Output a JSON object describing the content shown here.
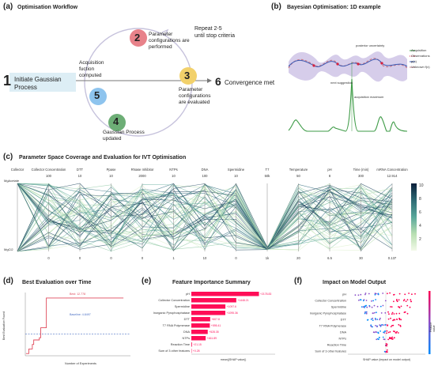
{
  "panel_a": {
    "label": "(a)",
    "title": "Optimisation Workflow",
    "repeat_text": "Repeat 2-5\nuntil stop criteria",
    "steps": [
      {
        "num": "1",
        "text": "Initiate Gaussian\nProcess"
      },
      {
        "num": "2",
        "text": "Parameter\nconfigurations are\nperformed"
      },
      {
        "num": "3",
        "text": "Parameter\nconfigurations\nare evaluated"
      },
      {
        "num": "4",
        "text": "Gaussian Process\nupdated"
      },
      {
        "num": "5",
        "text": "Acquisition\nfuction\ncomputed"
      },
      {
        "num": "6",
        "text": "Convergence met"
      }
    ],
    "colors": {
      "step2": "#e8828a",
      "step3": "#f2d16b",
      "step4": "#6dae76",
      "step5": "#8ec4ee",
      "step1_bg": "#ddeef5"
    }
  },
  "panel_b": {
    "label": "(b)",
    "title": "Bayesian Optimisation: 1D example",
    "legend": [
      "Acquisition",
      "Observations",
      "μ(x)",
      "Unknown f(x)"
    ],
    "annotations": [
      "posterior uncertainty",
      "next suggestion",
      "acquisition maximum"
    ]
  },
  "panel_c": {
    "label": "(c)",
    "title": "Parameter Space Coverage and Evaluation for IVT Optimisation",
    "axes": [
      {
        "name": "Collector",
        "top": "",
        "bottom": ""
      },
      {
        "name": "Collector Concentration",
        "top": "100",
        "bottom": "0"
      },
      {
        "name": "DTT",
        "top": "10",
        "bottom": "0"
      },
      {
        "name": "Ppase",
        "top": "10",
        "bottom": "0"
      },
      {
        "name": "RNase Inhibitor",
        "top": "2000",
        "bottom": "0"
      },
      {
        "name": "NTPs",
        "top": "10",
        "bottom": "1"
      },
      {
        "name": "DNA",
        "top": "100",
        "bottom": "10"
      },
      {
        "name": "Spermidine",
        "top": "10",
        "bottom": "0"
      },
      {
        "name": "T7",
        "top": "50k",
        "bottom": "1k"
      },
      {
        "name": "Temperature",
        "top": "50",
        "bottom": "20"
      },
      {
        "name": "pH",
        "top": "8",
        "bottom": "6.5"
      },
      {
        "name": "Time (min)",
        "top": "300",
        "bottom": "30"
      },
      {
        "name": "mRNA Concentration",
        "top": "12.914",
        "bottom": "0.137"
      }
    ],
    "first_axis_labels": [
      "MgAcetate",
      "MgCl2"
    ],
    "colorbar_ticks": [
      "10",
      "8",
      "6",
      "4",
      "2"
    ]
  },
  "panel_d": {
    "label": "(d)",
    "title": "Best Evaluation over Time",
    "xlabel": "Number of Experiments",
    "ylabel": "Best Evaluation Found",
    "annotations": [
      "Best: 12.778",
      "Baseline: 4.8497"
    ],
    "chart_data": {
      "type": "line",
      "x": [
        1,
        5,
        10,
        12,
        20,
        22,
        28,
        30,
        40,
        42,
        60,
        80,
        100,
        120,
        140
      ],
      "y": [
        0.5,
        1.5,
        2.5,
        3.5,
        4.0,
        6.2,
        6.2,
        12.778,
        12.778,
        12.778,
        12.778,
        12.778,
        12.778,
        12.778,
        12.778
      ],
      "baseline": 4.8497,
      "xlim": [
        0,
        150
      ],
      "ylim": [
        0,
        14
      ]
    }
  },
  "panel_e": {
    "label": "(e)",
    "title": "Feature Importance Summary",
    "xlabel": "mean(|SHAP value|)",
    "chart_data": {
      "type": "bar",
      "categories": [
        "pH",
        "Collector Concentration",
        "Spermidine",
        "Inorganic Pyrophosphatase",
        "DTT",
        "T7 RNA Polymerase",
        "DNA",
        "NTPs",
        "Reaction Time",
        "Sum of 3 other features"
      ],
      "values": [
        2178.83,
        1448.21,
        1097.6,
        1095.36,
        607.8,
        595.41,
        528.35,
        461.89,
        21.15,
        0.28
      ],
      "value_labels": [
        "+2178.83",
        "+1448.21",
        "+1097.6",
        "+1095.36",
        "+607.8",
        "+595.41",
        "+528.35",
        "+461.89",
        "+21.15",
        "+0.28"
      ],
      "xlim": [
        0,
        2700
      ]
    }
  },
  "panel_f": {
    "label": "(f)",
    "title": "Impact on Model Output",
    "xlabel": "SHAP value (impact on model output)",
    "side_label": "Feature value",
    "features": [
      "pH",
      "Collector Concentration",
      "Spermidine",
      "Inorganic Pyrophosphatase",
      "DTT",
      "T7 RNA Polymerase",
      "DNA",
      "NTPs",
      "Reaction Time",
      "Sum of 3 other features"
    ],
    "colors": {
      "high": "#ff0051",
      "low": "#008bfb"
    }
  }
}
